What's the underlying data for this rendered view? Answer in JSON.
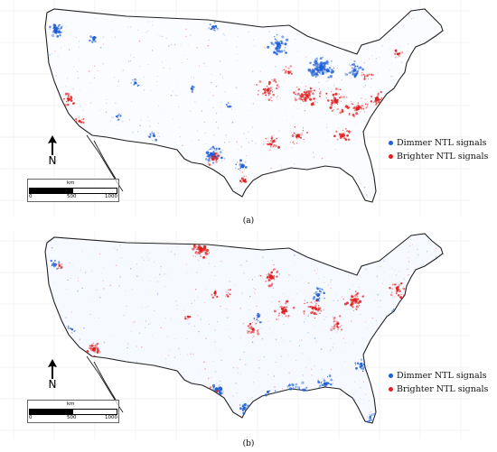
{
  "panels": [
    {
      "caption": "(a)",
      "legend": [
        {
          "label": "Dimmer NTL signals",
          "color": "#1f5fd6"
        },
        {
          "label": "Brighter NTL signals",
          "color": "#e0211f"
        }
      ],
      "north_label": "N",
      "scale": {
        "unit": "km",
        "ticks": [
          "0",
          "500",
          "1000"
        ]
      }
    },
    {
      "caption": "(b)",
      "legend": [
        {
          "label": "Dimmer NTL signals",
          "color": "#1f5fd6"
        },
        {
          "label": "Brighter NTL signals",
          "color": "#e0211f"
        }
      ],
      "north_label": "N",
      "scale": {
        "unit": "km",
        "ticks": [
          "0",
          "500",
          "1000"
        ]
      }
    }
  ]
}
